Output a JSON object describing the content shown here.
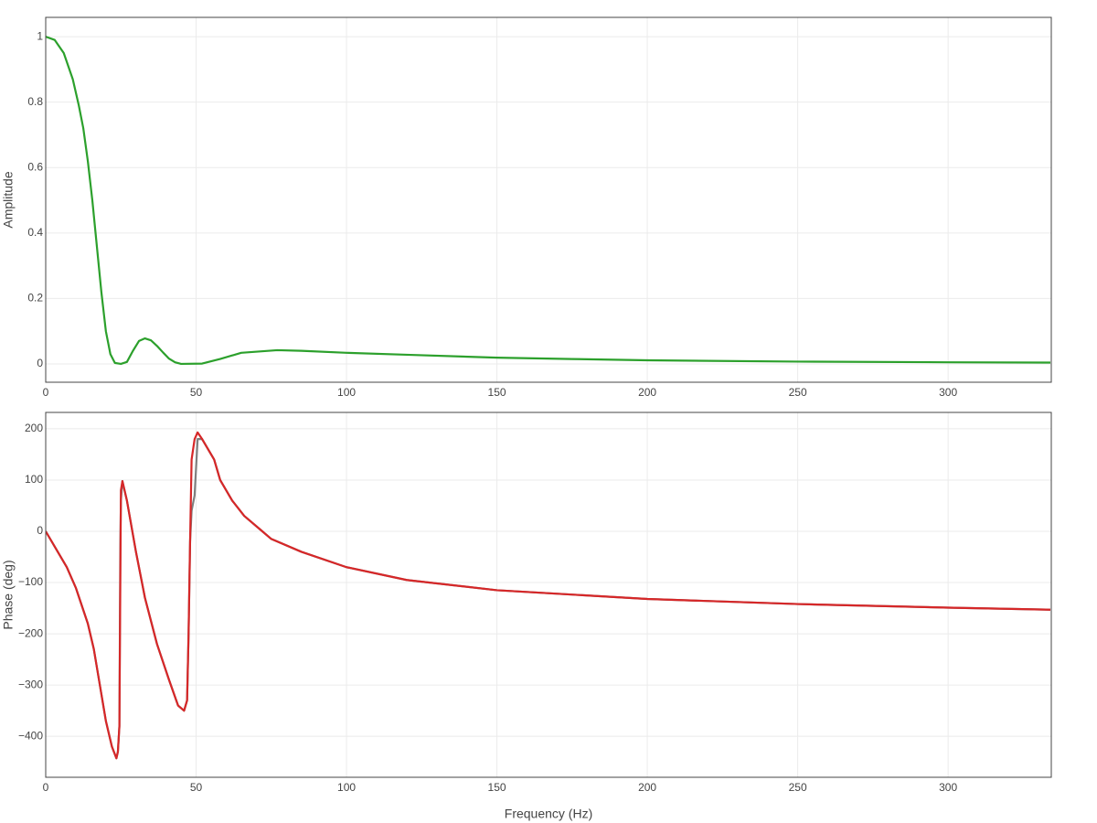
{
  "chart_data": [
    {
      "type": "line",
      "ylabel": "Amplitude",
      "x": [
        0,
        3,
        6,
        9,
        11,
        12.5,
        14,
        15.5,
        17,
        18.5,
        20,
        21.5,
        23,
        25,
        27,
        29,
        31,
        33,
        35,
        37,
        39,
        41,
        43,
        45,
        52,
        58,
        65,
        77,
        85,
        100,
        120,
        150,
        175,
        200,
        250,
        300,
        334
      ],
      "series": [
        {
          "color": "#2ca02c",
          "values": [
            1,
            0.99,
            0.95,
            0.87,
            0.79,
            0.72,
            0.62,
            0.5,
            0.36,
            0.22,
            0.1,
            0.03,
            0.003,
            0.0,
            0.006,
            0.04,
            0.07,
            0.078,
            0.072,
            0.055,
            0.035,
            0.016,
            0.005,
            0.0,
            0.001,
            0.015,
            0.034,
            0.042,
            0.04,
            0.034,
            0.028,
            0.019,
            0.015,
            0.011,
            0.007,
            0.005,
            0.004
          ]
        }
      ],
      "xlim": [
        0,
        334.3
      ],
      "xticks": [
        0,
        50,
        100,
        150,
        200,
        250,
        300
      ],
      "ylim": [
        -0.056,
        1.059
      ],
      "yticks": [
        0,
        0.2,
        0.4,
        0.6,
        0.8,
        1
      ],
      "grid": true
    },
    {
      "type": "line",
      "ylabel": "Phase (deg)",
      "xlabel": "Frequency (Hz)",
      "x": [
        0,
        3,
        7,
        10,
        14,
        16,
        18,
        20,
        22,
        23.5,
        24,
        24.5,
        24.8,
        25,
        25.5,
        27,
        30,
        33,
        37,
        41,
        44,
        46,
        47,
        47.5,
        48,
        48.5,
        49.5,
        50.5,
        52,
        56,
        58,
        62,
        66,
        72,
        75,
        85,
        100,
        120,
        150,
        200,
        250,
        300,
        334
      ],
      "series": [
        {
          "color": "#7f7f7f",
          "values": [
            0,
            -30,
            -70,
            -110,
            -180,
            -230,
            -300,
            -370,
            -420,
            -443,
            -430,
            -380,
            -30,
            60,
            98,
            60,
            -40,
            -130,
            -220,
            -290,
            -340,
            -350,
            -330,
            -200,
            -20,
            40,
            70,
            180,
            180,
            140,
            100,
            60,
            30,
            0,
            -15,
            -40,
            -70,
            -95,
            -115,
            -132,
            -142,
            -149,
            -153
          ]
        },
        {
          "color": "#d62728",
          "values": [
            0,
            -30,
            -70,
            -110,
            -180,
            -230,
            -300,
            -370,
            -420,
            -443,
            -430,
            -380,
            -100,
            80,
            98,
            60,
            -40,
            -130,
            -220,
            -290,
            -340,
            -350,
            -330,
            -200,
            -20,
            140,
            180,
            193,
            180,
            140,
            100,
            60,
            30,
            0,
            -15,
            -40,
            -70,
            -95,
            -115,
            -132,
            -142,
            -149,
            -153
          ]
        }
      ],
      "xlim": [
        0,
        334.3
      ],
      "xticks": [
        0,
        50,
        100,
        150,
        200,
        250,
        300
      ],
      "ylim": [
        -480,
        232
      ],
      "yticks": [
        {
          "value": -400,
          "label": "−400"
        },
        {
          "value": -300,
          "label": "−300"
        },
        {
          "value": -200,
          "label": "−200"
        },
        {
          "value": -100,
          "label": "−100"
        },
        0,
        100,
        200
      ],
      "grid": true
    }
  ]
}
